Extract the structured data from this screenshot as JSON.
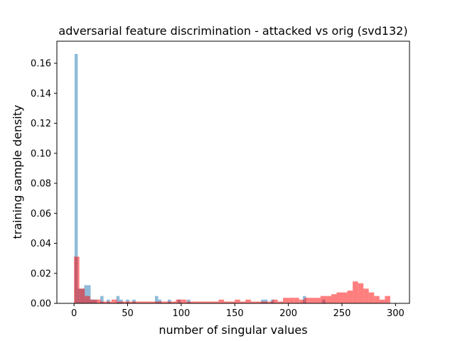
{
  "chart_data": {
    "type": "bar",
    "title": "adversarial feature discrimination - attacked vs orig (svd132)",
    "xlabel": "number of singular values",
    "ylabel": "training sample density",
    "xlim": [
      -16,
      313
    ],
    "ylim": [
      0,
      0.1747
    ],
    "xticks": [
      0,
      50,
      100,
      150,
      200,
      250,
      300
    ],
    "yticks": [
      0.0,
      0.02,
      0.04,
      0.06,
      0.08,
      0.1,
      0.12,
      0.14,
      0.16
    ],
    "grid": false,
    "legend": null,
    "series": [
      {
        "color": "#1f77b4",
        "opacity": 0.5,
        "bin_width": 3,
        "bins": [
          [
            2,
            0.1662
          ],
          [
            5,
            0.0098
          ],
          [
            8,
            0.0098
          ],
          [
            11,
            0.0121
          ],
          [
            14,
            0.0121
          ],
          [
            17,
            0.0025
          ],
          [
            20,
            0.0025
          ],
          [
            26,
            0.0049
          ],
          [
            32,
            0.0025
          ],
          [
            41,
            0.0049
          ],
          [
            44,
            0.0025
          ],
          [
            50,
            0.0025
          ],
          [
            56,
            0.0025
          ],
          [
            77,
            0.0049
          ],
          [
            80,
            0.0025
          ],
          [
            89,
            0.0025
          ],
          [
            98,
            0.0025
          ],
          [
            107,
            0.0025
          ],
          [
            176,
            0.0025
          ],
          [
            179,
            0.0025
          ],
          [
            185,
            0.0025
          ],
          [
            215,
            0.0049
          ],
          [
            233,
            0.0025
          ]
        ]
      },
      {
        "color": "#ff0000",
        "opacity": 0.5,
        "bin_width": 5,
        "bins": [
          [
            2.5,
            0.0311
          ],
          [
            7.5,
            0.0098
          ],
          [
            12.5,
            0.0049
          ],
          [
            17.5,
            0.0025
          ],
          [
            22.5,
            0.0025
          ],
          [
            27.5,
            0.0012
          ],
          [
            32.5,
            0.0012
          ],
          [
            37.5,
            0.0025
          ],
          [
            42.5,
            0.0012
          ],
          [
            47.5,
            0.0012
          ],
          [
            52.5,
            0.0012
          ],
          [
            57.5,
            0.0012
          ],
          [
            62.5,
            0.0012
          ],
          [
            67.5,
            0.0012
          ],
          [
            72.5,
            0.0012
          ],
          [
            77.5,
            0.0012
          ],
          [
            82.5,
            0.0012
          ],
          [
            87.5,
            0.0012
          ],
          [
            92.5,
            0.0012
          ],
          [
            97.5,
            0.0025
          ],
          [
            102.5,
            0.0025
          ],
          [
            107.5,
            0.0012
          ],
          [
            112.5,
            0.0012
          ],
          [
            117.5,
            0.0012
          ],
          [
            122.5,
            0.0012
          ],
          [
            127.5,
            0.0012
          ],
          [
            132.5,
            0.0012
          ],
          [
            137.5,
            0.0025
          ],
          [
            142.5,
            0.0012
          ],
          [
            147.5,
            0.0012
          ],
          [
            152.5,
            0.0025
          ],
          [
            157.5,
            0.0012
          ],
          [
            162.5,
            0.0025
          ],
          [
            167.5,
            0.0012
          ],
          [
            172.5,
            0.0012
          ],
          [
            177.5,
            0.0012
          ],
          [
            182.5,
            0.0012
          ],
          [
            187.5,
            0.0025
          ],
          [
            192.5,
            0.0012
          ],
          [
            197.5,
            0.0037
          ],
          [
            202.5,
            0.0037
          ],
          [
            207.5,
            0.0037
          ],
          [
            212.5,
            0.0025
          ],
          [
            217.5,
            0.0037
          ],
          [
            222.5,
            0.0037
          ],
          [
            227.5,
            0.0037
          ],
          [
            232.5,
            0.0049
          ],
          [
            237.5,
            0.0049
          ],
          [
            242.5,
            0.0061
          ],
          [
            247.5,
            0.0073
          ],
          [
            252.5,
            0.0073
          ],
          [
            257.5,
            0.0085
          ],
          [
            262.5,
            0.0146
          ],
          [
            267.5,
            0.0134
          ],
          [
            272.5,
            0.0098
          ],
          [
            277.5,
            0.0073
          ],
          [
            282.5,
            0.0049
          ],
          [
            287.5,
            0.0025
          ],
          [
            292.5,
            0.0049
          ]
        ]
      }
    ]
  }
}
